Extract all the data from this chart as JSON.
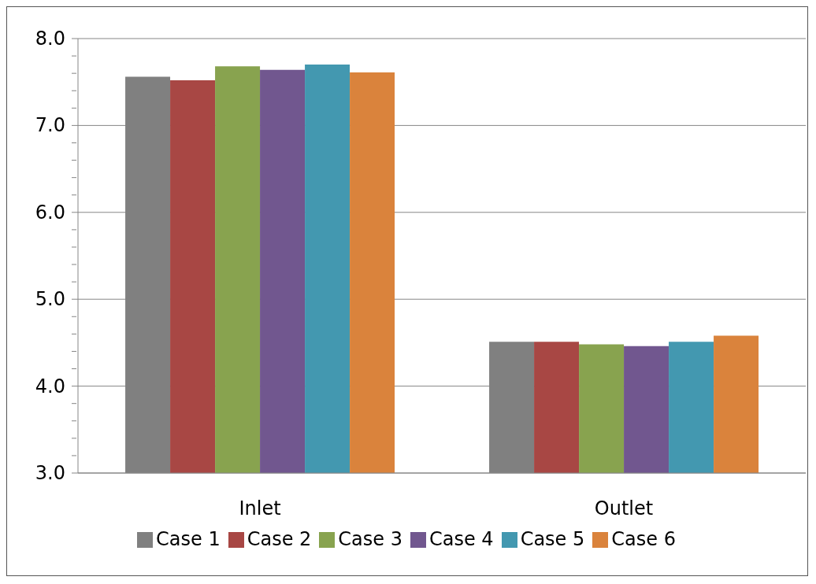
{
  "chart_data": {
    "type": "bar",
    "categories": [
      "Inlet",
      "Outlet"
    ],
    "series": [
      {
        "name": "Case 1",
        "color": "#808080",
        "values": [
          7.56,
          4.51
        ]
      },
      {
        "name": "Case 2",
        "color": "#a84744",
        "values": [
          7.52,
          4.51
        ]
      },
      {
        "name": "Case 3",
        "color": "#88a34f",
        "values": [
          7.68,
          4.48
        ]
      },
      {
        "name": "Case 4",
        "color": "#71578f",
        "values": [
          7.64,
          4.46
        ]
      },
      {
        "name": "Case 5",
        "color": "#4398b0",
        "values": [
          7.7,
          4.51
        ]
      },
      {
        "name": "Case 6",
        "color": "#da833c",
        "values": [
          7.61,
          4.58
        ]
      }
    ],
    "ylim": [
      3,
      8
    ],
    "yticks": [
      {
        "value": 3,
        "label": "3.0"
      },
      {
        "value": 3.2,
        "label": null
      },
      {
        "value": 3.4,
        "label": null
      },
      {
        "value": 3.6,
        "label": null
      },
      {
        "value": 3.8,
        "label": null
      },
      {
        "value": 4,
        "label": "4.0"
      },
      {
        "value": 4.2,
        "label": null
      },
      {
        "value": 4.4,
        "label": null
      },
      {
        "value": 4.6,
        "label": null
      },
      {
        "value": 4.8,
        "label": null
      },
      {
        "value": 5,
        "label": "5.0"
      },
      {
        "value": 5.2,
        "label": null
      },
      {
        "value": 5.4,
        "label": null
      },
      {
        "value": 5.6,
        "label": null
      },
      {
        "value": 5.8,
        "label": null
      },
      {
        "value": 6,
        "label": "6.0"
      },
      {
        "value": 6.2,
        "label": null
      },
      {
        "value": 6.4,
        "label": null
      },
      {
        "value": 6.6,
        "label": null
      },
      {
        "value": 6.8,
        "label": null
      },
      {
        "value": 7,
        "label": "7.0"
      },
      {
        "value": 7.2,
        "label": null
      },
      {
        "value": 7.4,
        "label": null
      },
      {
        "value": 7.6,
        "label": null
      },
      {
        "value": 7.8,
        "label": null
      },
      {
        "value": 8,
        "label": "8.0"
      }
    ],
    "grid": "y",
    "legend": "bottom"
  }
}
